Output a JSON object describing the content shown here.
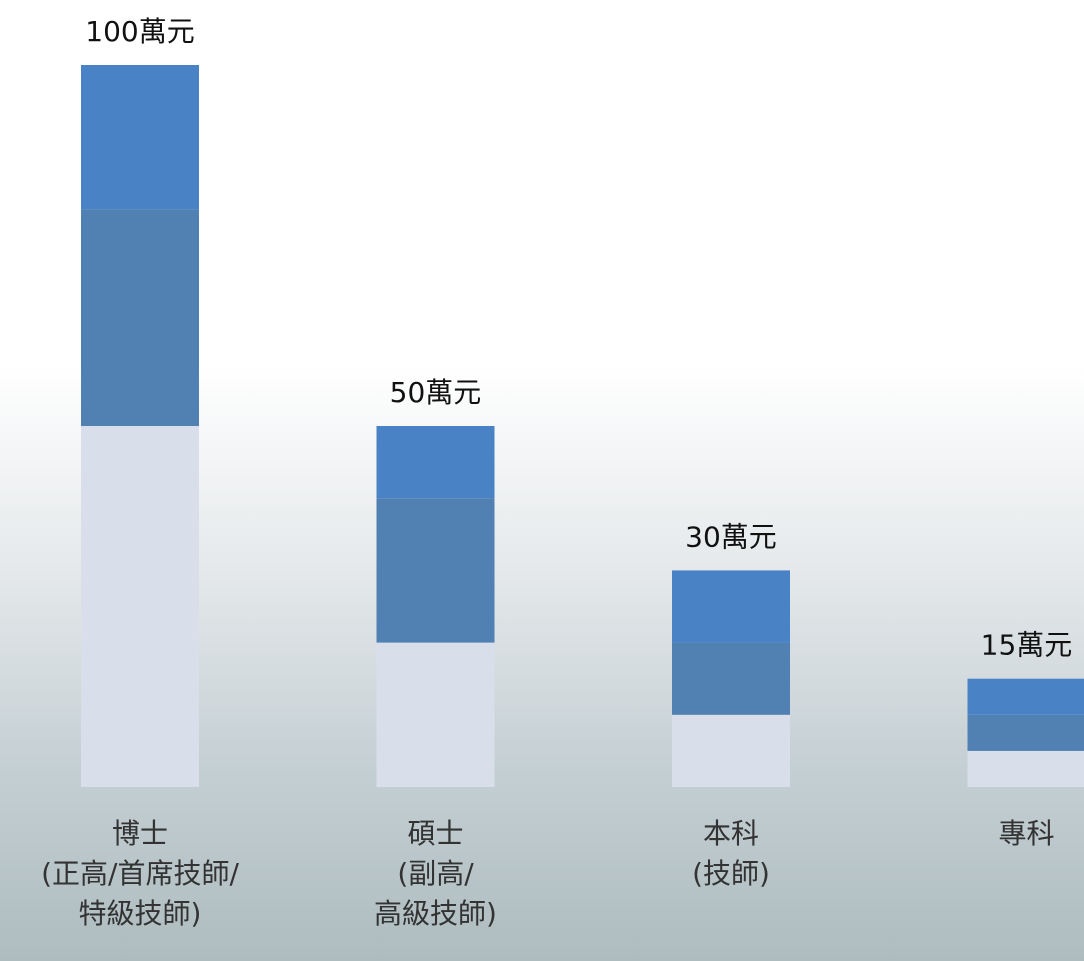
{
  "chart_data": {
    "type": "stacked-bar",
    "categories": [
      [
        "博士",
        "(正高/首席技師/",
        "特級技師)"
      ],
      [
        "碩士",
        "(副高/",
        "高級技師)"
      ],
      [
        "本科",
        "(技師)"
      ],
      [
        "專科"
      ]
    ],
    "series": [
      {
        "color": "#d8dfeb",
        "values": [
          50,
          20,
          10,
          5
        ]
      },
      {
        "color": "#5181b2",
        "values": [
          30,
          20,
          10,
          5
        ]
      },
      {
        "color": "#4a82c6",
        "values": [
          20,
          10,
          10,
          5
        ]
      }
    ],
    "totals": {
      "values": [
        100,
        50,
        30,
        15
      ],
      "value_labels": [
        "100萬元",
        "50萬元",
        "30萬元",
        "15萬元"
      ]
    }
  }
}
